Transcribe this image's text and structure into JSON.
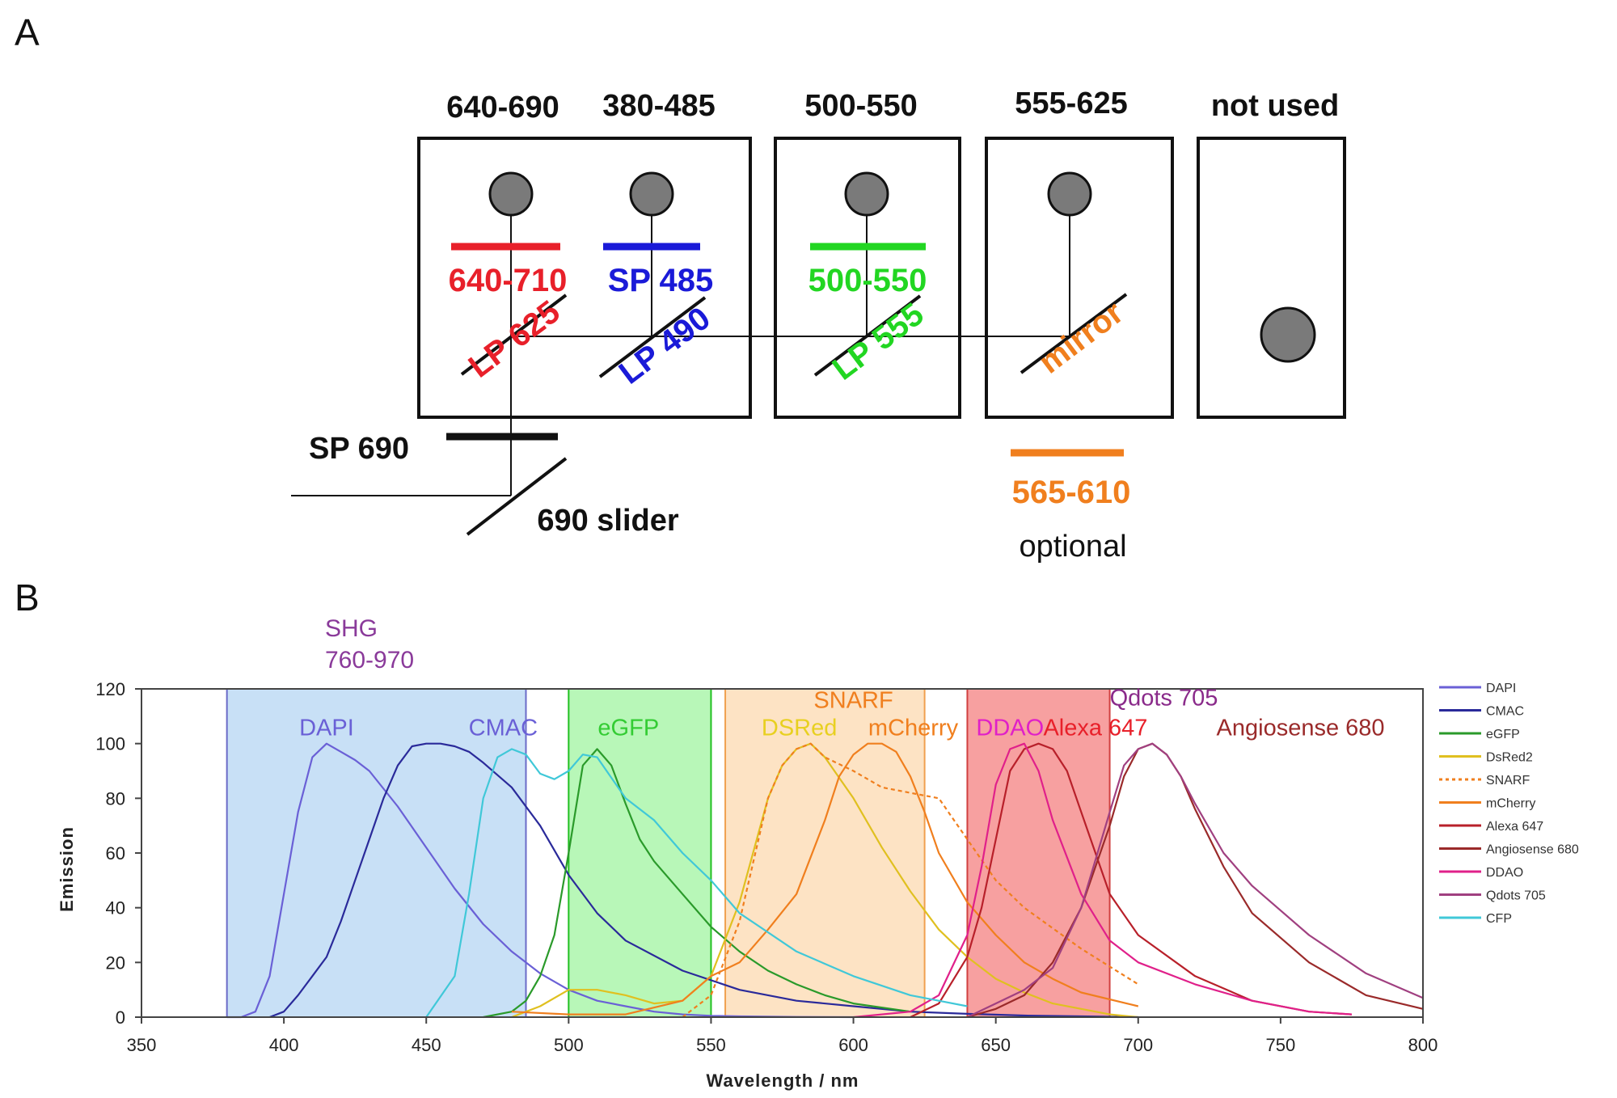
{
  "panel_a": {
    "label": "A",
    "bands": [
      "640-690",
      "380-485",
      "500-550",
      "555-625",
      "not used"
    ],
    "filters": {
      "red_filter": "640-710",
      "blue_filter": "SP 485",
      "green_filter": "500-550",
      "orange_filter": "565-610"
    },
    "dichroics": {
      "red": "LP 625",
      "blue": "LP 490",
      "green": "LP 555",
      "orange": "mirror"
    },
    "sp690": "SP 690",
    "slider": "690 slider",
    "optional": "optional",
    "colors": {
      "red": "#e8202a",
      "blue": "#1a1ad8",
      "green": "#22d622",
      "orange": "#f07f1e",
      "detector": "#7a7a7a"
    }
  },
  "panel_b": {
    "label": "B",
    "shg_label": [
      "SHG",
      "760-970"
    ]
  },
  "chart_data": {
    "type": "line",
    "xlabel": "Wavelength / nm",
    "ylabel": "Emission",
    "xlim": [
      350,
      800
    ],
    "ylim": [
      0,
      120
    ],
    "xticks": [
      350,
      400,
      450,
      500,
      550,
      600,
      650,
      700,
      750,
      800
    ],
    "yticks": [
      0,
      20,
      40,
      60,
      80,
      100,
      120
    ],
    "bands": [
      {
        "range": [
          380,
          485
        ],
        "color": "#c8e0f6",
        "edge": "#6b6bc8"
      },
      {
        "range": [
          500,
          550
        ],
        "color": "#b8f7b8",
        "edge": "#22c022"
      },
      {
        "range": [
          555,
          625
        ],
        "color": "#fde3c4",
        "edge": "#f0a050"
      },
      {
        "range": [
          640,
          690
        ],
        "color": "#f7a0a0",
        "edge": "#d04040"
      }
    ],
    "series": [
      {
        "name": "DAPI",
        "color": "#6a60d6",
        "dash": false,
        "x": [
          380,
          385,
          390,
          395,
          400,
          405,
          410,
          415,
          420,
          425,
          430,
          440,
          450,
          460,
          470,
          480,
          490,
          500,
          510,
          520,
          530,
          540,
          550,
          560,
          580,
          600
        ],
        "y": [
          0,
          0,
          2,
          15,
          45,
          75,
          95,
          100,
          97,
          94,
          90,
          77,
          62,
          47,
          34,
          24,
          16,
          10,
          6,
          4,
          2,
          1,
          0.5,
          0.3,
          0.1,
          0
        ]
      },
      {
        "name": "CMAC",
        "color": "#2a2a9a",
        "dash": false,
        "x": [
          395,
          400,
          405,
          410,
          415,
          420,
          425,
          430,
          435,
          440,
          445,
          450,
          455,
          460,
          465,
          470,
          480,
          490,
          500,
          510,
          520,
          540,
          560,
          580,
          600,
          620,
          640,
          660,
          680,
          700
        ],
        "y": [
          0,
          2,
          8,
          15,
          22,
          35,
          50,
          65,
          80,
          92,
          99,
          100,
          100,
          99,
          97,
          93,
          84,
          70,
          52,
          38,
          28,
          17,
          10,
          6,
          4,
          2,
          1.2,
          0.6,
          0.3,
          0
        ]
      },
      {
        "name": "eGFP",
        "color": "#2a9a2a",
        "dash": false,
        "x": [
          470,
          480,
          485,
          490,
          495,
          500,
          505,
          510,
          515,
          520,
          525,
          530,
          540,
          550,
          560,
          570,
          580,
          590,
          600,
          620
        ],
        "y": [
          0,
          2,
          6,
          15,
          30,
          60,
          92,
          98,
          92,
          78,
          65,
          57,
          45,
          33,
          24,
          17,
          12,
          8,
          5,
          2
        ]
      },
      {
        "name": "DsRed2",
        "color": "#e0c020",
        "dash": false,
        "x": [
          480,
          490,
          500,
          510,
          520,
          530,
          540,
          550,
          560,
          570,
          575,
          580,
          585,
          590,
          600,
          610,
          620,
          630,
          640,
          650,
          660,
          670,
          680,
          690,
          700
        ],
        "y": [
          0,
          4,
          10,
          10,
          8,
          5,
          6,
          15,
          42,
          80,
          92,
          98,
          100,
          95,
          80,
          62,
          46,
          32,
          22,
          14,
          9,
          5,
          3,
          1,
          0
        ]
      },
      {
        "name": "SNARF",
        "color": "#f07f1e",
        "dash": true,
        "x": [
          540,
          550,
          560,
          570,
          575,
          580,
          585,
          590,
          600,
          610,
          620,
          630,
          640,
          650,
          660,
          680,
          700
        ],
        "y": [
          0,
          8,
          35,
          80,
          92,
          98,
          100,
          95,
          90,
          84,
          82,
          80,
          65,
          50,
          40,
          25,
          12
        ]
      },
      {
        "name": "mCherry",
        "color": "#f07f1e",
        "dash": false,
        "x": [
          480,
          500,
          520,
          540,
          550,
          560,
          570,
          580,
          590,
          595,
          600,
          605,
          610,
          615,
          620,
          625,
          630,
          640,
          650,
          660,
          670,
          680,
          700
        ],
        "y": [
          2,
          1,
          1,
          6,
          15,
          20,
          32,
          45,
          72,
          88,
          96,
          100,
          100,
          97,
          88,
          75,
          60,
          42,
          30,
          20,
          14,
          9,
          4
        ]
      },
      {
        "name": "Alexa 647",
        "color": "#b8202a",
        "dash": false,
        "x": [
          620,
          630,
          640,
          645,
          650,
          655,
          660,
          665,
          670,
          675,
          680,
          690,
          700,
          720,
          740,
          760,
          775
        ],
        "y": [
          0,
          5,
          22,
          40,
          65,
          90,
          98,
          100,
          98,
          90,
          75,
          45,
          30,
          15,
          6,
          2,
          1
        ]
      },
      {
        "name": "Angiosense 680",
        "color": "#9a2a2a",
        "dash": false,
        "x": [
          640,
          650,
          660,
          670,
          680,
          690,
          695,
          700,
          705,
          710,
          715,
          720,
          730,
          740,
          760,
          780,
          800
        ],
        "y": [
          0,
          3,
          8,
          20,
          40,
          70,
          88,
          98,
          100,
          96,
          88,
          76,
          55,
          38,
          20,
          8,
          3
        ]
      },
      {
        "name": "DDAO",
        "color": "#e0208a",
        "dash": false,
        "x": [
          600,
          620,
          630,
          640,
          645,
          650,
          655,
          660,
          665,
          670,
          680,
          690,
          700,
          720,
          740,
          760,
          775
        ],
        "y": [
          0,
          2,
          8,
          30,
          55,
          85,
          98,
          100,
          90,
          72,
          45,
          28,
          20,
          12,
          6,
          2,
          1
        ]
      },
      {
        "name": "Qdots 705",
        "color": "#a04080",
        "dash": false,
        "x": [
          640,
          660,
          670,
          680,
          690,
          695,
          700,
          705,
          710,
          715,
          720,
          730,
          740,
          760,
          780,
          800
        ],
        "y": [
          0,
          10,
          18,
          40,
          75,
          92,
          98,
          100,
          96,
          88,
          78,
          60,
          48,
          30,
          16,
          7
        ]
      },
      {
        "name": "CFP",
        "color": "#40c8d8",
        "dash": false,
        "x": [
          450,
          460,
          465,
          470,
          475,
          480,
          485,
          490,
          495,
          500,
          505,
          510,
          520,
          530,
          540,
          550,
          560,
          580,
          600,
          620,
          640
        ],
        "y": [
          0,
          15,
          45,
          80,
          95,
          98,
          96,
          89,
          87,
          90,
          96,
          95,
          80,
          72,
          60,
          50,
          38,
          24,
          15,
          8,
          4
        ]
      }
    ],
    "annotations": [
      {
        "text": "DAPI",
        "x": 415,
        "y": 103,
        "color": "#6a60d6"
      },
      {
        "text": "CMAC",
        "x": 477,
        "y": 103,
        "color": "#6a60d6"
      },
      {
        "text": "eGFP",
        "x": 521,
        "y": 103,
        "color": "#33cc33"
      },
      {
        "text": "DSRed",
        "x": 581,
        "y": 103,
        "color": "#e8d020"
      },
      {
        "text": "mCherry",
        "x": 621,
        "y": 103,
        "color": "#f07f1e"
      },
      {
        "text": "SNARF",
        "x": 600,
        "y": 113,
        "color": "#f07f1e"
      },
      {
        "text": "DDAO",
        "x": 655,
        "y": 103,
        "color": "#e020c8"
      },
      {
        "text": "Alexa 647",
        "x": 685,
        "y": 103,
        "color": "#e8202a"
      },
      {
        "text": "Qdots 705",
        "x": 709,
        "y": 114,
        "color": "#8a2a8a"
      },
      {
        "text": "Angiosense 680",
        "x": 757,
        "y": 103,
        "color": "#9a2a2a"
      }
    ],
    "legend": [
      "DAPI",
      "CMAC",
      "eGFP",
      "DsRed2",
      "SNARF",
      "mCherry",
      "Alexa 647",
      "Angiosense 680",
      "DDAO",
      "Qdots 705",
      "CFP"
    ]
  }
}
